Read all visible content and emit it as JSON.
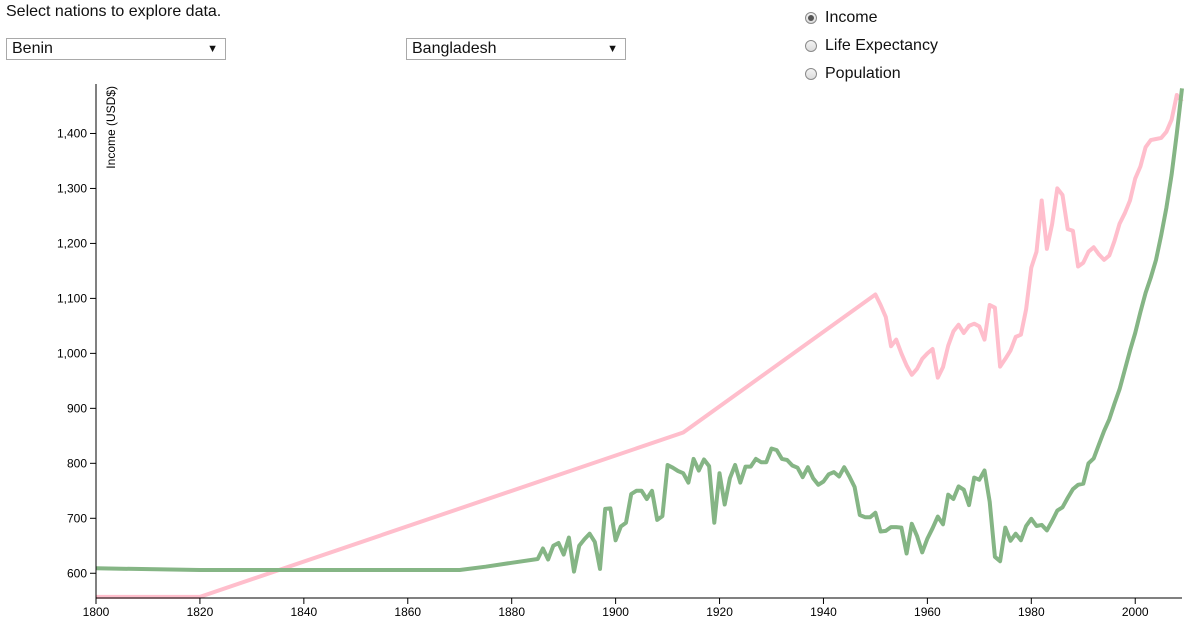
{
  "prompt": "Select nations to explore data.",
  "selectors": [
    {
      "selected": "Benin"
    },
    {
      "selected": "Bangladesh"
    }
  ],
  "metrics": [
    {
      "label": "Income",
      "checked": true
    },
    {
      "label": "Life Expectancy",
      "checked": false
    },
    {
      "label": "Population",
      "checked": false
    }
  ],
  "chart_data": {
    "type": "line",
    "ylabel": "Income (USD$)",
    "xlabel": "",
    "title": "",
    "xlim": [
      1800,
      2009
    ],
    "ylim": [
      555,
      1490
    ],
    "x_ticks": [
      1800,
      1820,
      1840,
      1860,
      1880,
      1900,
      1920,
      1940,
      1960,
      1980,
      2000
    ],
    "y_ticks": [
      600,
      700,
      800,
      900,
      1000,
      1100,
      1200,
      1300,
      1400
    ],
    "grid": false,
    "series": [
      {
        "color": "#ffbecc",
        "points": [
          [
            1800,
            557
          ],
          [
            1820,
            557
          ],
          [
            1913,
            856
          ],
          [
            1950,
            1107
          ],
          [
            1951,
            1088
          ],
          [
            1952,
            1066
          ],
          [
            1953,
            1013
          ],
          [
            1954,
            1025
          ],
          [
            1955,
            1000
          ],
          [
            1956,
            978
          ],
          [
            1957,
            961
          ],
          [
            1958,
            972
          ],
          [
            1959,
            990
          ],
          [
            1960,
            1000
          ],
          [
            1961,
            1008
          ],
          [
            1962,
            956
          ],
          [
            1963,
            975
          ],
          [
            1964,
            1014
          ],
          [
            1965,
            1040
          ],
          [
            1966,
            1052
          ],
          [
            1967,
            1037
          ],
          [
            1968,
            1050
          ],
          [
            1969,
            1054
          ],
          [
            1970,
            1049
          ],
          [
            1971,
            1025
          ],
          [
            1972,
            1088
          ],
          [
            1973,
            1083
          ],
          [
            1974,
            976
          ],
          [
            1975,
            990
          ],
          [
            1976,
            1005
          ],
          [
            1977,
            1030
          ],
          [
            1978,
            1034
          ],
          [
            1979,
            1080
          ],
          [
            1980,
            1156
          ],
          [
            1981,
            1185
          ],
          [
            1982,
            1278
          ],
          [
            1983,
            1190
          ],
          [
            1984,
            1235
          ],
          [
            1985,
            1300
          ],
          [
            1986,
            1288
          ],
          [
            1987,
            1226
          ],
          [
            1988,
            1223
          ],
          [
            1989,
            1158
          ],
          [
            1990,
            1165
          ],
          [
            1991,
            1185
          ],
          [
            1992,
            1193
          ],
          [
            1993,
            1180
          ],
          [
            1994,
            1170
          ],
          [
            1995,
            1178
          ],
          [
            1996,
            1204
          ],
          [
            1997,
            1236
          ],
          [
            1998,
            1255
          ],
          [
            1999,
            1278
          ],
          [
            2000,
            1318
          ],
          [
            2001,
            1340
          ],
          [
            2002,
            1375
          ],
          [
            2003,
            1388
          ],
          [
            2004,
            1390
          ],
          [
            2005,
            1392
          ],
          [
            2006,
            1403
          ],
          [
            2007,
            1425
          ],
          [
            2008,
            1470
          ],
          [
            2009,
            1458
          ]
        ]
      },
      {
        "color": "#85b585",
        "points": [
          [
            1800,
            609
          ],
          [
            1820,
            606
          ],
          [
            1870,
            606
          ],
          [
            1875,
            612
          ],
          [
            1880,
            619
          ],
          [
            1885,
            626
          ],
          [
            1886,
            645
          ],
          [
            1887,
            625
          ],
          [
            1888,
            650
          ],
          [
            1889,
            655
          ],
          [
            1890,
            634
          ],
          [
            1891,
            665
          ],
          [
            1892,
            603
          ],
          [
            1893,
            650
          ],
          [
            1894,
            662
          ],
          [
            1895,
            672
          ],
          [
            1896,
            657
          ],
          [
            1897,
            608
          ],
          [
            1898,
            717
          ],
          [
            1899,
            718
          ],
          [
            1900,
            660
          ],
          [
            1901,
            685
          ],
          [
            1902,
            692
          ],
          [
            1903,
            744
          ],
          [
            1904,
            750
          ],
          [
            1905,
            750
          ],
          [
            1906,
            735
          ],
          [
            1907,
            750
          ],
          [
            1908,
            697
          ],
          [
            1909,
            704
          ],
          [
            1910,
            797
          ],
          [
            1911,
            792
          ],
          [
            1912,
            786
          ],
          [
            1913,
            782
          ],
          [
            1914,
            765
          ],
          [
            1915,
            808
          ],
          [
            1916,
            787
          ],
          [
            1917,
            807
          ],
          [
            1918,
            795
          ],
          [
            1919,
            692
          ],
          [
            1920,
            782
          ],
          [
            1921,
            725
          ],
          [
            1922,
            773
          ],
          [
            1923,
            797
          ],
          [
            1924,
            765
          ],
          [
            1925,
            794
          ],
          [
            1926,
            794
          ],
          [
            1927,
            808
          ],
          [
            1928,
            802
          ],
          [
            1929,
            802
          ],
          [
            1930,
            827
          ],
          [
            1931,
            824
          ],
          [
            1932,
            808
          ],
          [
            1933,
            806
          ],
          [
            1934,
            796
          ],
          [
            1935,
            792
          ],
          [
            1936,
            775
          ],
          [
            1937,
            793
          ],
          [
            1938,
            773
          ],
          [
            1939,
            761
          ],
          [
            1940,
            767
          ],
          [
            1941,
            780
          ],
          [
            1942,
            784
          ],
          [
            1943,
            776
          ],
          [
            1944,
            793
          ],
          [
            1945,
            776
          ],
          [
            1946,
            757
          ],
          [
            1947,
            706
          ],
          [
            1948,
            702
          ],
          [
            1949,
            702
          ],
          [
            1950,
            710
          ],
          [
            1951,
            676
          ],
          [
            1952,
            677
          ],
          [
            1953,
            684
          ],
          [
            1954,
            684
          ],
          [
            1955,
            683
          ],
          [
            1956,
            636
          ],
          [
            1957,
            690
          ],
          [
            1958,
            668
          ],
          [
            1959,
            638
          ],
          [
            1960,
            663
          ],
          [
            1961,
            682
          ],
          [
            1962,
            703
          ],
          [
            1963,
            689
          ],
          [
            1964,
            743
          ],
          [
            1965,
            735
          ],
          [
            1966,
            758
          ],
          [
            1967,
            752
          ],
          [
            1968,
            724
          ],
          [
            1969,
            774
          ],
          [
            1970,
            770
          ],
          [
            1971,
            787
          ],
          [
            1972,
            730
          ],
          [
            1973,
            630
          ],
          [
            1974,
            622
          ],
          [
            1975,
            683
          ],
          [
            1976,
            659
          ],
          [
            1977,
            672
          ],
          [
            1978,
            660
          ],
          [
            1979,
            686
          ],
          [
            1980,
            699
          ],
          [
            1981,
            686
          ],
          [
            1982,
            688
          ],
          [
            1983,
            678
          ],
          [
            1984,
            695
          ],
          [
            1985,
            714
          ],
          [
            1986,
            720
          ],
          [
            1987,
            737
          ],
          [
            1988,
            753
          ],
          [
            1989,
            761
          ],
          [
            1990,
            763
          ],
          [
            1991,
            800
          ],
          [
            1992,
            809
          ],
          [
            1993,
            834
          ],
          [
            1994,
            859
          ],
          [
            1995,
            880
          ],
          [
            1996,
            908
          ],
          [
            1997,
            935
          ],
          [
            1998,
            970
          ],
          [
            1999,
            1005
          ],
          [
            2000,
            1037
          ],
          [
            2001,
            1075
          ],
          [
            2002,
            1110
          ],
          [
            2003,
            1138
          ],
          [
            2004,
            1170
          ],
          [
            2005,
            1215
          ],
          [
            2006,
            1265
          ],
          [
            2007,
            1325
          ],
          [
            2008,
            1400
          ],
          [
            2009,
            1482
          ]
        ]
      }
    ]
  }
}
